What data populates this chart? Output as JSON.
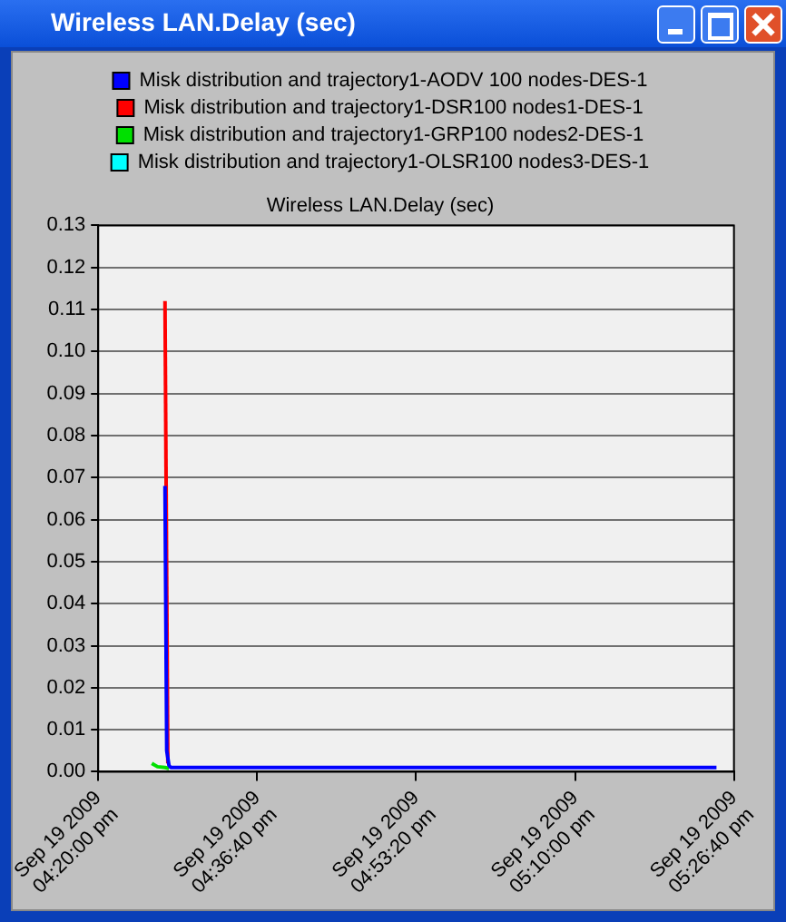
{
  "chart_data": {
    "type": "line",
    "title": "Wireless LAN.Delay (sec)",
    "annotations": [
      "Wireless LAN.Delay (sec)"
    ],
    "xlim": [
      "2009-09-19T16:20:00",
      "2009-09-19T17:26:40"
    ],
    "xticks": [
      {
        "value": "2009-09-19T16:20:00",
        "label": "Sep 19 2009\n04:20:00 pm"
      },
      {
        "value": "2009-09-19T16:36:40",
        "label": "Sep 19 2009\n04:36:40 pm"
      },
      {
        "value": "2009-09-19T16:53:20",
        "label": "Sep 19 2009\n04:53:20 pm"
      },
      {
        "value": "2009-09-19T17:10:00",
        "label": "Sep 19 2009\n05:10:00 pm"
      },
      {
        "value": "2009-09-19T17:26:40",
        "label": "Sep 19 2009\n05:26:40 pm"
      }
    ],
    "ylim": [
      0,
      0.13
    ],
    "yticks": [
      {
        "value": 0,
        "label": "0.00"
      },
      0.01,
      0.02,
      0.03,
      0.04,
      0.05,
      0.06,
      0.07,
      0.08,
      0.09,
      {
        "value": 0.1,
        "label": "0.10"
      },
      0.11,
      0.12,
      0.13
    ],
    "grid": "y",
    "legend": "top",
    "marker": "none",
    "line_style": "solid",
    "series": [
      {
        "name": "Misk distribution and trajectory1-AODV 100 nodes-DES-1",
        "color": "#0000ff",
        "x": [
          "2009-09-19T16:27:00",
          "2009-09-19T16:27:11",
          "2009-09-19T16:27:25",
          "2009-09-19T16:27:36",
          "2009-09-19T17:24:50"
        ],
        "values": [
          0.068,
          0.005,
          0.0015,
          0.001,
          0.001
        ]
      },
      {
        "name": "Misk distribution and trajectory1-DSR100 nodes1-DES-1",
        "color": "#ff0000",
        "x": [
          "2009-09-19T16:27:00",
          "2009-09-19T16:27:18"
        ],
        "values": [
          0.112,
          0.002
        ]
      },
      {
        "name": "Misk distribution and trajectory1-GRP100 nodes2-DES-1",
        "color": "#00e000",
        "x": [
          "2009-09-19T16:25:37",
          "2009-09-19T16:26:13",
          "2009-09-19T16:27:00",
          "2009-09-19T16:27:25"
        ],
        "values": [
          0.002,
          0.0012,
          0.001,
          0.0008
        ]
      },
      {
        "name": "Misk distribution and trajectory1-OLSR100 nodes3-DES-1",
        "color": "#00ffff"
      }
    ]
  }
}
